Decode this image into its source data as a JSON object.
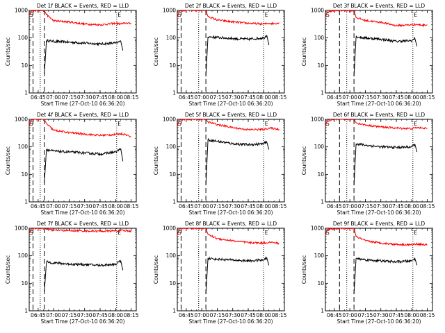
{
  "common": {
    "title_suffix": "BLACK = Events, RED = LLD",
    "xlabel": "Start Time (27-Oct-10 06:36:20)",
    "ylabel": "Counts/sec",
    "x_ticks": [
      "06:45",
      "07:00",
      "07:15",
      "07:30",
      "07:45",
      "08:00",
      "08:15"
    ],
    "y_ticks": [
      "1",
      "10",
      "100",
      "1000"
    ],
    "marker_start": "S",
    "marker_end": "E",
    "colors": {
      "events": "#000000",
      "lld": "#ff0000",
      "axes": "#000000"
    }
  },
  "chart_data": [
    {
      "type": "line",
      "title": "Det 1f BLACK = Events, RED = LLD",
      "detector": "1f",
      "xlim": [
        "06:36:20",
        "08:20"
      ],
      "ylim": [
        1,
        1000
      ],
      "yscale": "log",
      "x_ticks": [
        "06:45",
        "07:00",
        "07:15",
        "07:30",
        "07:45",
        "08:00",
        "08:15"
      ],
      "y_ticks": [
        1,
        10,
        100,
        1000
      ],
      "vlines_dashed": [
        "06:40",
        "06:51"
      ],
      "vlines_dotted": [
        "06:47",
        "08:01"
      ],
      "markers": [
        {
          "label": "S",
          "x": "06:37"
        },
        {
          "label": "E",
          "x": "08:02"
        }
      ],
      "series": [
        {
          "name": "Events",
          "color": "#000000",
          "x": [
            "06:51",
            "06:53",
            "07:00",
            "07:15",
            "07:30",
            "07:45",
            "08:00",
            "08:05",
            "08:07"
          ],
          "y": [
            5,
            80,
            75,
            70,
            65,
            60,
            65,
            75,
            35
          ]
        },
        {
          "name": "LLD",
          "color": "#ff0000",
          "x": [
            "06:36",
            "06:38",
            "06:40",
            "06:51",
            "06:53",
            "07:00",
            "07:15",
            "07:30",
            "07:45",
            "08:00",
            "08:05",
            "08:10",
            "08:15"
          ],
          "y": [
            600,
            900,
            1000,
            1000,
            700,
            420,
            380,
            320,
            300,
            340,
            320,
            350,
            330
          ]
        }
      ]
    },
    {
      "type": "line",
      "title": "Det 2f BLACK = Events, RED = LLD",
      "detector": "2f",
      "xlim": [
        "06:36:20",
        "08:20"
      ],
      "ylim": [
        1,
        1000
      ],
      "yscale": "log",
      "x_ticks": [
        "06:45",
        "07:00",
        "07:15",
        "07:30",
        "07:45",
        "08:00",
        "08:15"
      ],
      "y_ticks": [
        1,
        10,
        100,
        1000
      ],
      "vlines_dashed": [
        "06:40",
        "07:04"
      ],
      "vlines_dotted": [
        "06:57",
        "08:00"
      ],
      "markers": [
        {
          "label": "S",
          "x": "06:37"
        },
        {
          "label": "E",
          "x": "08:01"
        }
      ],
      "series": [
        {
          "name": "Events",
          "color": "#000000",
          "x": [
            "07:04",
            "07:06",
            "07:15",
            "07:30",
            "07:45",
            "08:00",
            "08:03",
            "08:05"
          ],
          "y": [
            4,
            110,
            105,
            95,
            90,
            100,
            125,
            55
          ]
        },
        {
          "name": "LLD",
          "color": "#ff0000",
          "x": [
            "06:36",
            "06:38",
            "06:40",
            "07:04",
            "07:06",
            "07:15",
            "07:30",
            "07:45",
            "08:00",
            "08:05",
            "08:10",
            "08:15"
          ],
          "y": [
            500,
            900,
            1000,
            1000,
            600,
            450,
            380,
            340,
            320,
            340,
            330,
            360
          ]
        }
      ]
    },
    {
      "type": "line",
      "title": "Det 3f BLACK = Events, RED = LLD",
      "detector": "3f",
      "xlim": [
        "06:36:20",
        "08:20"
      ],
      "ylim": [
        1,
        1000
      ],
      "yscale": "log",
      "x_ticks": [
        "06:45",
        "07:00",
        "07:15",
        "07:30",
        "07:45",
        "08:00",
        "08:15"
      ],
      "y_ticks": [
        1,
        10,
        100,
        1000
      ],
      "vlines_dashed": [
        "06:50",
        "07:04"
      ],
      "vlines_dotted": [
        "06:57",
        "08:01"
      ],
      "markers": [
        {
          "label": "S",
          "x": "06:37"
        },
        {
          "label": "E",
          "x": "08:02"
        }
      ],
      "series": [
        {
          "name": "Events",
          "color": "#000000",
          "x": [
            "07:04",
            "07:06",
            "07:15",
            "07:30",
            "07:45",
            "08:00",
            "08:03",
            "08:05"
          ],
          "y": [
            4,
            110,
            100,
            90,
            75,
            80,
            95,
            50
          ]
        },
        {
          "name": "LLD",
          "color": "#ff0000",
          "x": [
            "06:36",
            "06:38",
            "06:50",
            "07:04",
            "07:06",
            "07:15",
            "07:30",
            "07:45",
            "08:00",
            "08:05",
            "08:10",
            "08:15"
          ],
          "y": [
            500,
            900,
            1000,
            1000,
            550,
            430,
            370,
            280,
            300,
            310,
            290,
            300
          ]
        }
      ]
    },
    {
      "type": "line",
      "title": "Det 4f BLACK = Events, RED = LLD",
      "detector": "4f",
      "xlim": [
        "06:36:20",
        "08:20"
      ],
      "ylim": [
        1,
        1000
      ],
      "yscale": "log",
      "x_ticks": [
        "06:45",
        "07:00",
        "07:15",
        "07:30",
        "07:45",
        "08:00",
        "08:15"
      ],
      "y_ticks": [
        1,
        10,
        100,
        1000
      ],
      "vlines_dashed": [
        "06:40",
        "06:51"
      ],
      "vlines_dotted": [
        "06:47",
        "08:01"
      ],
      "markers": [
        {
          "label": "S",
          "x": "06:37"
        },
        {
          "label": "E",
          "x": "08:02"
        }
      ],
      "series": [
        {
          "name": "Events",
          "color": "#000000",
          "x": [
            "06:51",
            "06:53",
            "07:00",
            "07:15",
            "07:30",
            "07:45",
            "08:00",
            "08:05",
            "08:07"
          ],
          "y": [
            5,
            80,
            70,
            65,
            60,
            55,
            65,
            85,
            30
          ]
        },
        {
          "name": "LLD",
          "color": "#ff0000",
          "x": [
            "06:36",
            "06:38",
            "06:40",
            "06:51",
            "06:53",
            "07:00",
            "07:15",
            "07:30",
            "07:45",
            "08:00",
            "08:05",
            "08:10",
            "08:15"
          ],
          "y": [
            500,
            900,
            1000,
            1000,
            700,
            400,
            330,
            290,
            260,
            280,
            300,
            280,
            230
          ]
        }
      ]
    },
    {
      "type": "line",
      "title": "Det 5f BLACK = Events, RED = LLD",
      "detector": "5f",
      "xlim": [
        "06:36:20",
        "08:20"
      ],
      "ylim": [
        1,
        1000
      ],
      "yscale": "log",
      "x_ticks": [
        "06:45",
        "07:00",
        "07:15",
        "07:30",
        "07:45",
        "08:00",
        "08:15"
      ],
      "y_ticks": [
        1,
        10,
        100,
        1000
      ],
      "vlines_dashed": [
        "06:40",
        "07:04"
      ],
      "vlines_dotted": [
        "06:57",
        "08:00"
      ],
      "markers": [
        {
          "label": "S",
          "x": "06:37"
        },
        {
          "label": "E",
          "x": "08:01"
        }
      ],
      "series": [
        {
          "name": "Events",
          "color": "#000000",
          "x": [
            "07:04",
            "07:06",
            "07:15",
            "07:30",
            "07:45",
            "08:00",
            "08:03",
            "08:05"
          ],
          "y": [
            4,
            180,
            160,
            130,
            120,
            130,
            150,
            80
          ]
        },
        {
          "name": "LLD",
          "color": "#ff0000",
          "x": [
            "06:36",
            "06:38",
            "06:40",
            "07:04",
            "07:06",
            "07:15",
            "07:30",
            "07:45",
            "08:00",
            "08:05",
            "08:10",
            "08:15"
          ],
          "y": [
            500,
            900,
            1000,
            1000,
            800,
            650,
            500,
            420,
            430,
            480,
            460,
            430
          ]
        }
      ]
    },
    {
      "type": "line",
      "title": "Det 6f BLACK = Events, RED = LLD",
      "detector": "6f",
      "xlim": [
        "06:36:20",
        "08:20"
      ],
      "ylim": [
        1,
        1000
      ],
      "yscale": "log",
      "x_ticks": [
        "06:45",
        "07:00",
        "07:15",
        "07:30",
        "07:45",
        "08:00",
        "08:15"
      ],
      "y_ticks": [
        1,
        10,
        100,
        1000
      ],
      "vlines_dashed": [
        "06:50",
        "07:04"
      ],
      "vlines_dotted": [
        "06:57",
        "08:01"
      ],
      "markers": [
        {
          "label": "S",
          "x": "06:37"
        },
        {
          "label": "E",
          "x": "08:02"
        }
      ],
      "series": [
        {
          "name": "Events",
          "color": "#000000",
          "x": [
            "07:04",
            "07:06",
            "07:15",
            "07:30",
            "07:45",
            "08:00",
            "08:03",
            "08:05"
          ],
          "y": [
            4,
            130,
            115,
            100,
            95,
            100,
            125,
            65
          ]
        },
        {
          "name": "LLD",
          "color": "#ff0000",
          "x": [
            "06:36",
            "06:38",
            "06:50",
            "07:04",
            "07:06",
            "07:15",
            "07:30",
            "07:45",
            "08:00",
            "08:05",
            "08:10",
            "08:15"
          ],
          "y": [
            500,
            900,
            1000,
            1000,
            750,
            620,
            530,
            480,
            460,
            500,
            490,
            470
          ]
        }
      ]
    },
    {
      "type": "line",
      "title": "Det 7f BLACK = Events, RED = LLD",
      "detector": "7f",
      "xlim": [
        "06:36:20",
        "08:20"
      ],
      "ylim": [
        1,
        1000
      ],
      "yscale": "log",
      "x_ticks": [
        "06:45",
        "07:00",
        "07:15",
        "07:30",
        "07:45",
        "08:00",
        "08:15"
      ],
      "y_ticks": [
        1,
        10,
        100,
        1000
      ],
      "vlines_dashed": [
        "06:40",
        "06:51"
      ],
      "vlines_dotted": [
        "06:47",
        "08:01"
      ],
      "markers": [
        {
          "label": "S",
          "x": "06:37"
        },
        {
          "label": "E",
          "x": "08:02"
        }
      ],
      "series": [
        {
          "name": "Events",
          "color": "#000000",
          "x": [
            "06:51",
            "06:53",
            "07:00",
            "07:15",
            "07:30",
            "07:45",
            "08:00",
            "08:05",
            "08:07"
          ],
          "y": [
            5,
            60,
            55,
            50,
            48,
            45,
            50,
            65,
            30
          ]
        },
        {
          "name": "LLD",
          "color": "#ff0000",
          "x": [
            "06:36",
            "06:38",
            "06:40",
            "06:51",
            "06:53",
            "07:00",
            "07:15",
            "07:30",
            "07:45",
            "08:00",
            "08:05",
            "08:10",
            "08:15"
          ],
          "y": [
            600,
            900,
            1000,
            1000,
            900,
            850,
            820,
            800,
            780,
            800,
            820,
            810,
            790
          ]
        }
      ]
    },
    {
      "type": "line",
      "title": "Det 8f BLACK = Events, RED = LLD",
      "detector": "8f",
      "xlim": [
        "06:36:20",
        "08:20"
      ],
      "ylim": [
        1,
        1000
      ],
      "yscale": "log",
      "x_ticks": [
        "06:45",
        "07:00",
        "07:15",
        "07:30",
        "07:45",
        "08:00",
        "08:15"
      ],
      "y_ticks": [
        1,
        10,
        100,
        1000
      ],
      "vlines_dashed": [
        "06:40",
        "07:04"
      ],
      "vlines_dotted": [
        "06:57",
        "08:00"
      ],
      "markers": [
        {
          "label": "S",
          "x": "06:37"
        },
        {
          "label": "E",
          "x": "08:01"
        }
      ],
      "series": [
        {
          "name": "Events",
          "color": "#000000",
          "x": [
            "07:04",
            "07:06",
            "07:15",
            "07:30",
            "07:45",
            "08:00",
            "08:03",
            "08:05"
          ],
          "y": [
            4,
            80,
            75,
            70,
            65,
            70,
            85,
            45
          ]
        },
        {
          "name": "LLD",
          "color": "#ff0000",
          "x": [
            "06:36",
            "06:38",
            "06:40",
            "07:04",
            "07:06",
            "07:15",
            "07:30",
            "07:45",
            "08:00",
            "08:05",
            "08:10",
            "08:15"
          ],
          "y": [
            500,
            900,
            1000,
            1000,
            600,
            420,
            350,
            300,
            290,
            310,
            300,
            280
          ]
        }
      ]
    },
    {
      "type": "line",
      "title": "Det 9f BLACK = Events, RED = LLD",
      "detector": "9f",
      "xlim": [
        "06:36:20",
        "08:20"
      ],
      "ylim": [
        1,
        1000
      ],
      "yscale": "log",
      "x_ticks": [
        "06:45",
        "07:00",
        "07:15",
        "07:30",
        "07:45",
        "08:00",
        "08:15"
      ],
      "y_ticks": [
        1,
        10,
        100,
        1000
      ],
      "vlines_dashed": [
        "06:50",
        "07:04"
      ],
      "vlines_dotted": [
        "06:57",
        "08:01"
      ],
      "markers": [
        {
          "label": "S",
          "x": "06:37"
        },
        {
          "label": "E",
          "x": "08:02"
        }
      ],
      "series": [
        {
          "name": "Events",
          "color": "#000000",
          "x": [
            "07:04",
            "07:06",
            "07:15",
            "07:30",
            "07:45",
            "08:00",
            "08:03",
            "08:05"
          ],
          "y": [
            4,
            80,
            72,
            65,
            60,
            65,
            80,
            45
          ]
        },
        {
          "name": "LLD",
          "color": "#ff0000",
          "x": [
            "06:36",
            "06:38",
            "06:50",
            "07:04",
            "07:06",
            "07:15",
            "07:30",
            "07:45",
            "08:00",
            "08:05",
            "08:10",
            "08:15"
          ],
          "y": [
            500,
            900,
            1000,
            1000,
            500,
            350,
            290,
            260,
            250,
            270,
            260,
            250
          ]
        }
      ]
    }
  ]
}
